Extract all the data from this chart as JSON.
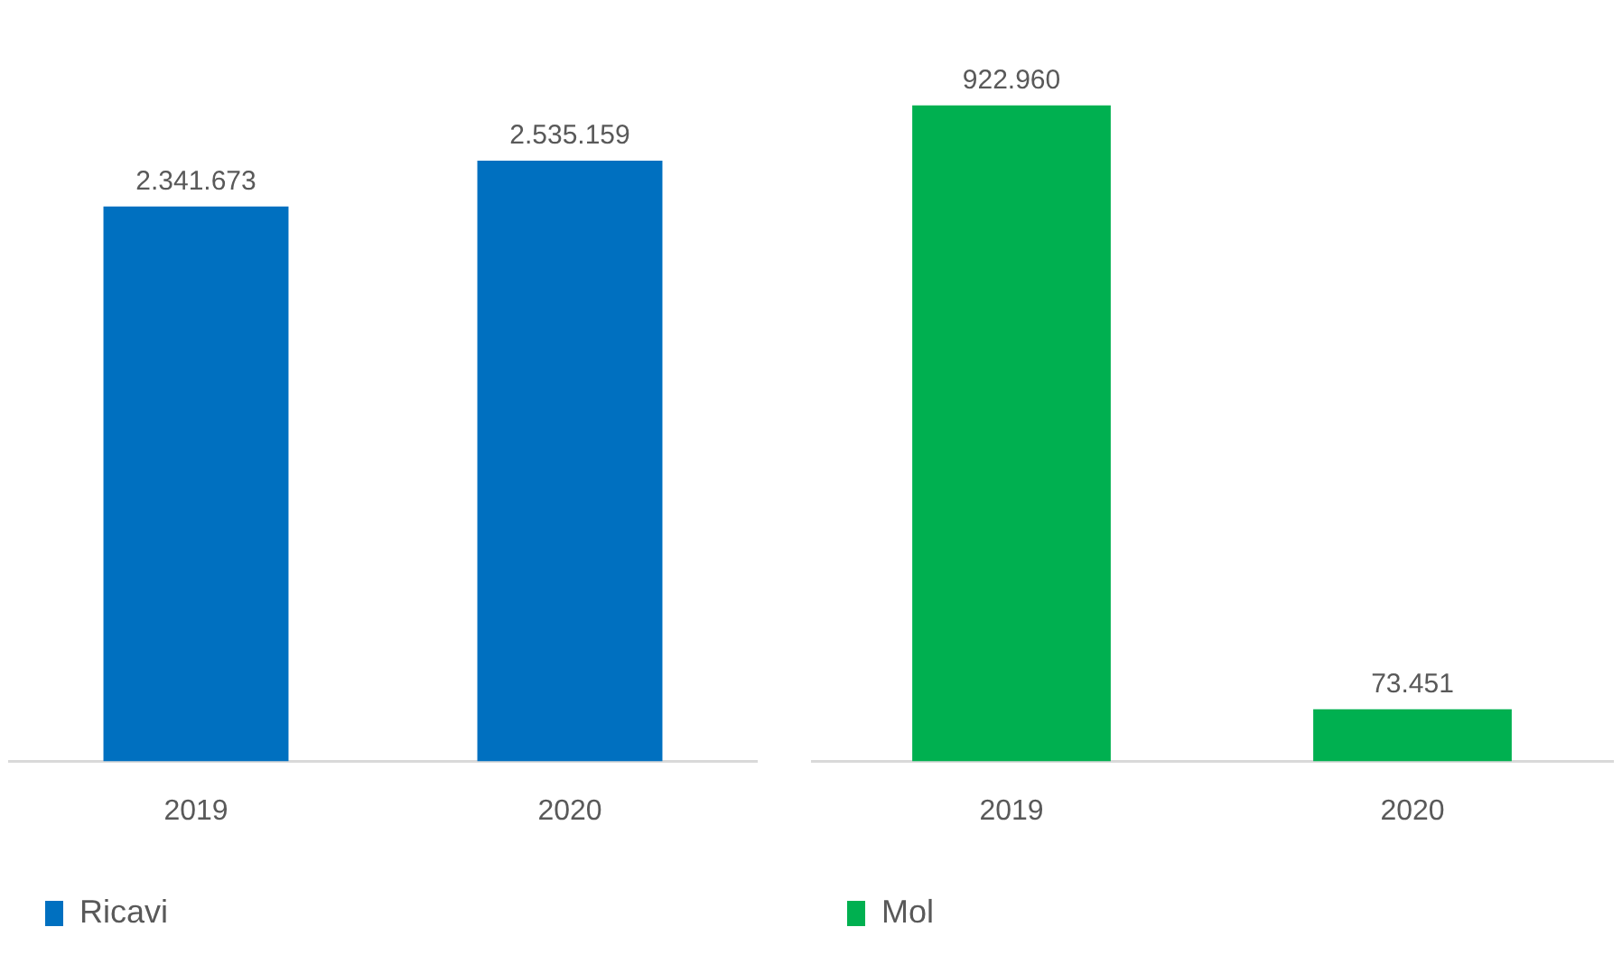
{
  "chart_data": [
    {
      "type": "bar",
      "categories": [
        "2019",
        "2020"
      ],
      "series": [
        {
          "name": "Ricavi",
          "color": "#0070c0",
          "values": [
            2341673,
            2535159
          ],
          "value_labels": [
            "2.341.673",
            "2.535.159"
          ]
        }
      ],
      "tick_labels": "x",
      "grid": false,
      "legend": "bottom left"
    },
    {
      "type": "bar",
      "categories": [
        "2019",
        "2020"
      ],
      "series": [
        {
          "name": "Mol",
          "color": "#00b050",
          "values": [
            922960,
            73451
          ],
          "value_labels": [
            "922.960",
            "73.451"
          ]
        }
      ],
      "tick_labels": "x",
      "grid": false,
      "legend": "bottom left"
    }
  ]
}
